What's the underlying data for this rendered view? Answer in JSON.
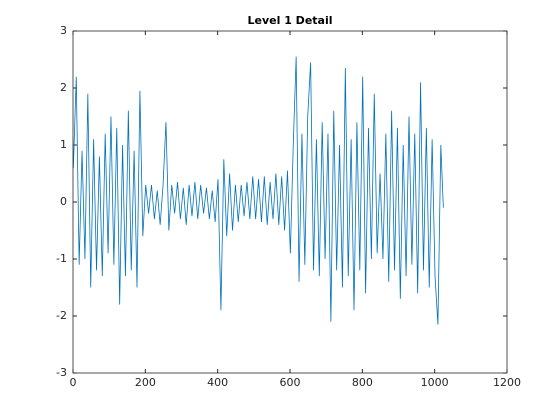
{
  "chart_data": {
    "type": "line",
    "title": "Level 1 Detail",
    "x": [
      1,
      9,
      17,
      25,
      33,
      41,
      49,
      57,
      65,
      73,
      81,
      89,
      97,
      105,
      113,
      121,
      129,
      137,
      145,
      153,
      161,
      169,
      177,
      185,
      193,
      201,
      209,
      217,
      225,
      233,
      241,
      249,
      257,
      265,
      273,
      281,
      289,
      297,
      305,
      313,
      321,
      329,
      337,
      345,
      353,
      361,
      369,
      377,
      385,
      393,
      401,
      409,
      417,
      425,
      433,
      441,
      449,
      457,
      465,
      473,
      481,
      489,
      497,
      505,
      513,
      521,
      529,
      537,
      545,
      553,
      561,
      569,
      577,
      585,
      593,
      601,
      609,
      617,
      625,
      633,
      641,
      649,
      657,
      665,
      673,
      681,
      689,
      697,
      705,
      713,
      721,
      729,
      737,
      745,
      753,
      761,
      769,
      777,
      785,
      793,
      801,
      809,
      817,
      825,
      833,
      841,
      849,
      857,
      865,
      873,
      881,
      889,
      897,
      905,
      913,
      921,
      929,
      937,
      945,
      953,
      961,
      969,
      977,
      985,
      993,
      1001,
      1009,
      1017,
      1024
    ],
    "series": [
      {
        "color": "#0072bd",
        "values": [
          0.6,
          2.2,
          -1.1,
          0.9,
          -1.0,
          1.9,
          -1.5,
          1.1,
          -1.2,
          0.8,
          -1.3,
          1.2,
          -0.9,
          1.5,
          -1.1,
          1.3,
          -1.8,
          1.0,
          -1.3,
          1.6,
          -1.2,
          0.9,
          -1.5,
          1.95,
          -0.6,
          0.3,
          -0.2,
          0.3,
          -0.3,
          0.2,
          -0.4,
          0.3,
          1.4,
          -0.5,
          0.3,
          -0.2,
          0.35,
          -0.3,
          0.25,
          -0.4,
          0.3,
          -0.25,
          0.35,
          -0.3,
          0.3,
          -0.2,
          0.25,
          -0.3,
          0.2,
          -0.35,
          0.4,
          -1.9,
          0.75,
          -0.6,
          0.5,
          -0.5,
          0.3,
          -0.35,
          0.3,
          -0.25,
          0.35,
          -0.3,
          0.45,
          -0.3,
          0.4,
          -0.35,
          0.45,
          -0.4,
          0.35,
          -0.3,
          0.5,
          -0.4,
          0.45,
          -0.5,
          0.55,
          -0.9,
          1.0,
          2.55,
          -1.4,
          1.2,
          -1.1,
          1.5,
          2.45,
          -1.2,
          1.1,
          -1.3,
          1.4,
          -1.0,
          1.2,
          -2.1,
          1.6,
          -1.2,
          1.0,
          -1.5,
          2.35,
          -1.3,
          1.1,
          -1.9,
          1.4,
          -1.2,
          2.2,
          -1.6,
          1.3,
          -1.0,
          1.9,
          -0.9,
          0.5,
          -1.0,
          1.2,
          -1.4,
          1.6,
          -1.2,
          1.3,
          -1.7,
          1.0,
          -1.3,
          1.5,
          -1.1,
          1.2,
          -1.6,
          2.1,
          -1.2,
          1.3,
          -1.5,
          1.1,
          -1.3,
          -2.15,
          1.0,
          -0.1
        ]
      }
    ],
    "xlim": [
      0,
      1200
    ],
    "xticks": [
      0,
      200,
      400,
      600,
      800,
      1000,
      1200
    ],
    "ylim": [
      -3,
      3
    ],
    "yticks": [
      -3,
      -2,
      -1,
      0,
      1,
      2,
      3
    ]
  }
}
